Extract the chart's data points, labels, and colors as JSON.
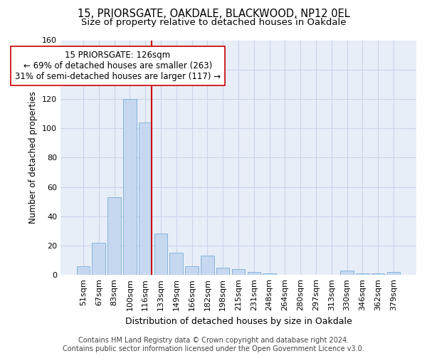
{
  "title1": "15, PRIORSGATE, OAKDALE, BLACKWOOD, NP12 0EL",
  "title2": "Size of property relative to detached houses in Oakdale",
  "xlabel": "Distribution of detached houses by size in Oakdale",
  "ylabel": "Number of detached properties",
  "footnote1": "Contains HM Land Registry data © Crown copyright and database right 2024.",
  "footnote2": "Contains public sector information licensed under the Open Government Licence v3.0.",
  "annotation_line1": "15 PRIORSGATE: 126sqm",
  "annotation_line2": "← 69% of detached houses are smaller (263)",
  "annotation_line3": "31% of semi-detached houses are larger (117) →",
  "bar_labels": [
    "51sqm",
    "67sqm",
    "83sqm",
    "100sqm",
    "116sqm",
    "133sqm",
    "149sqm",
    "166sqm",
    "182sqm",
    "198sqm",
    "215sqm",
    "231sqm",
    "248sqm",
    "264sqm",
    "280sqm",
    "297sqm",
    "313sqm",
    "330sqm",
    "346sqm",
    "362sqm",
    "379sqm"
  ],
  "bar_values": [
    6,
    22,
    53,
    120,
    104,
    28,
    15,
    6,
    13,
    5,
    4,
    2,
    1,
    0,
    0,
    0,
    0,
    3,
    1,
    1,
    2
  ],
  "bar_color": "#c5d8f0",
  "bar_edge_color": "#7aadd4",
  "vline_color": "#cc0000",
  "ylim": [
    0,
    160
  ],
  "yticks": [
    0,
    20,
    40,
    60,
    80,
    100,
    120,
    140,
    160
  ],
  "grid_color": "#c8d4e8",
  "background_color": "#e8eef8",
  "annotation_box_facecolor": "#ffffff",
  "annotation_box_edgecolor": "#cc0000",
  "title1_fontsize": 10.5,
  "title2_fontsize": 9.5,
  "xlabel_fontsize": 9,
  "ylabel_fontsize": 8.5,
  "tick_fontsize": 8,
  "annotation_fontsize": 8.5,
  "footnote_fontsize": 7
}
